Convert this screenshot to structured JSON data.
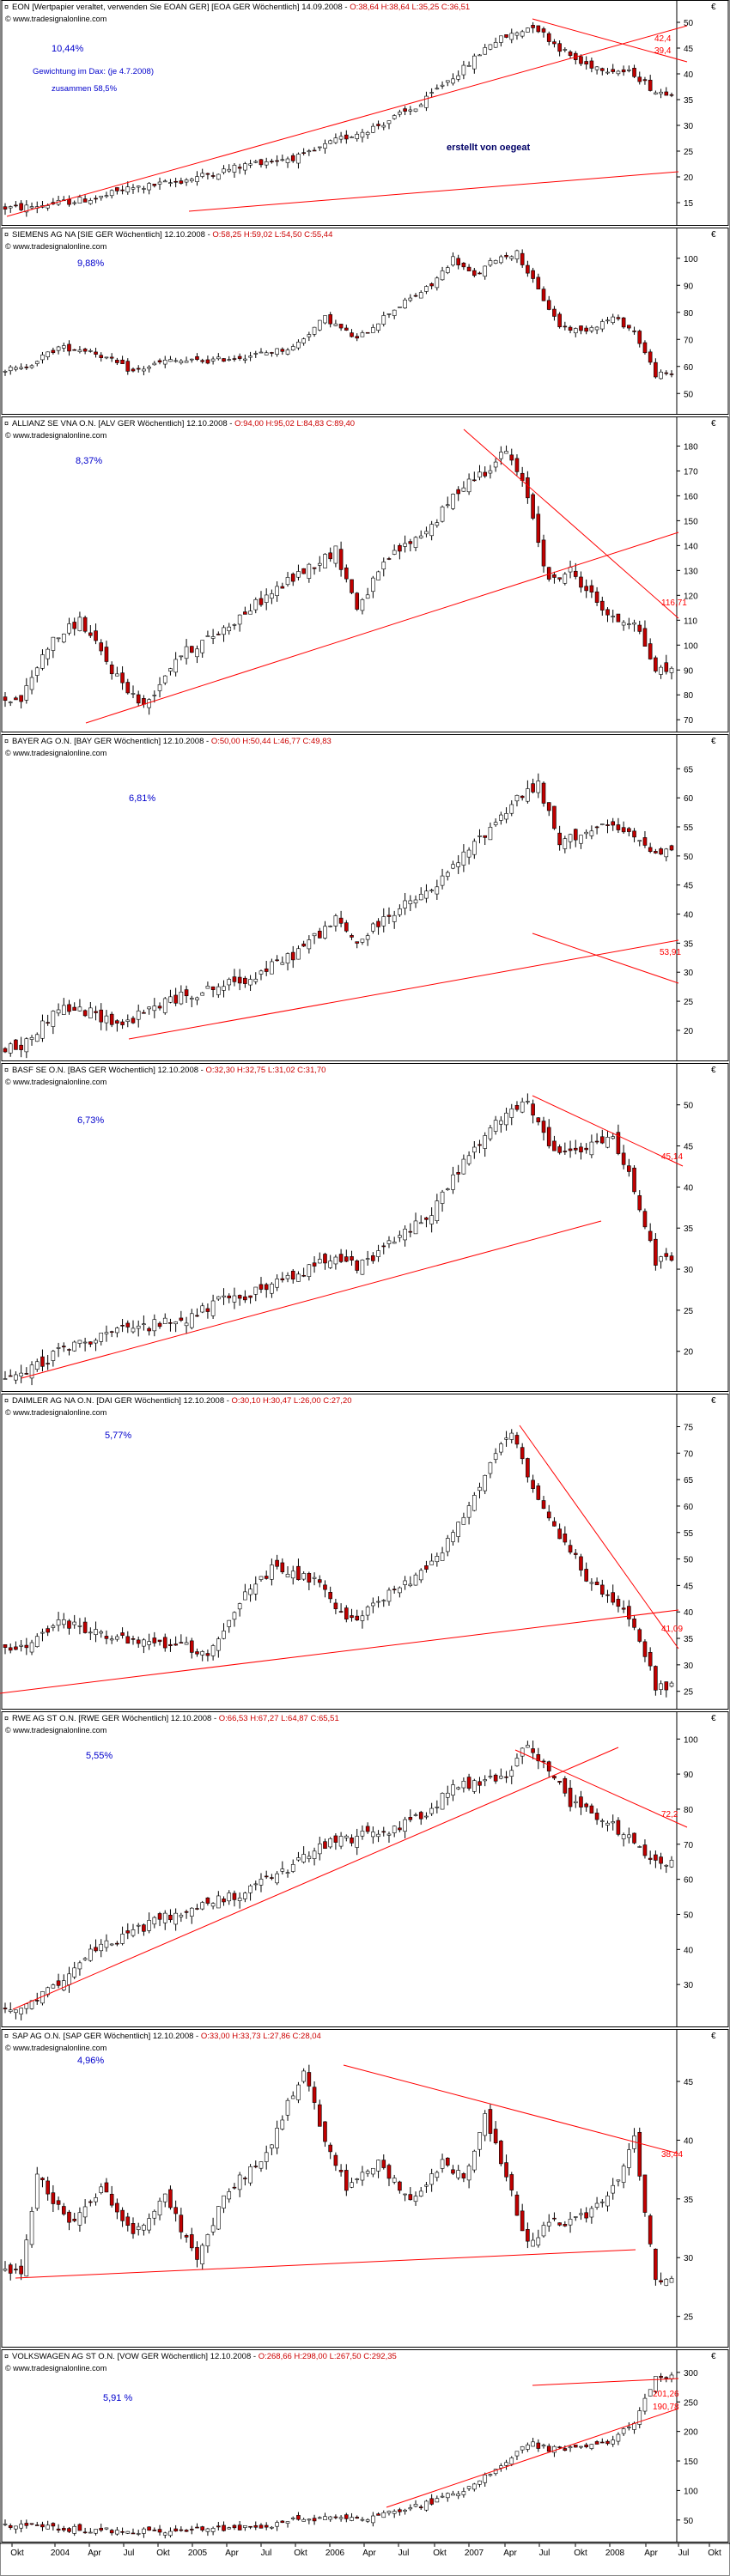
{
  "source_url": "www.tradesignalonline.com",
  "currency_symbol": "€",
  "author_note": "erstellt von oegeat",
  "x_axis": {
    "labels": [
      "Okt",
      "2004",
      "Apr",
      "Jul",
      "Okt",
      "2005",
      "Apr",
      "Jul",
      "Okt",
      "2006",
      "Apr",
      "Jul",
      "Okt",
      "2007",
      "Apr",
      "Jul",
      "Okt",
      "2008",
      "Apr",
      "Jul",
      "Okt"
    ]
  },
  "colors": {
    "candle_up": "#ffffff",
    "candle_down": "#c00000",
    "wick": "#000000",
    "trendline": "#ff0000",
    "annotation": "#ff0000",
    "weight_text": "#0000cc",
    "header_text": "#000000",
    "ohlc_text": "#cc0000"
  },
  "chart_data": [
    {
      "type": "candlestick",
      "title": "EON [Wertpapier veraltet, verwenden Sie EOAN GER] [EOA GER Wöchentlich] 14.09.2008",
      "ohlc": "O:38,64 H:38,64 L:35,25 C:36,51",
      "weight_label": "10,44%",
      "extra_labels": [
        "Gewichtung im Dax: (je 4.7.2008)",
        "zusammen 58,5%"
      ],
      "y_ticks": [
        50,
        45,
        40,
        35,
        30,
        25,
        20,
        15
      ],
      "ylim": [
        12,
        51
      ],
      "annotations": [
        "42,4",
        "39,4"
      ],
      "series": [
        3,
        14,
        18,
        16,
        22,
        17.5,
        32,
        19,
        40,
        21,
        48,
        23,
        56,
        24,
        62,
        27,
        70,
        30,
        78,
        34,
        82,
        38,
        86,
        41,
        91,
        46,
        96,
        48,
        99,
        49.5,
        104,
        45,
        108,
        42,
        113,
        41,
        118,
        40,
        122,
        36.5
      ]
    },
    {
      "type": "candlestick",
      "title": "SIEMENS AG NA [SIE GER Wöchentlich] 12.10.2008",
      "ohlc": "O:58,25 H:59,02 L:54,50 C:55,44",
      "weight_label": "9,88%",
      "y_ticks": [
        100,
        90,
        80,
        70,
        60,
        50
      ],
      "ylim": [
        45,
        105
      ],
      "annotations": [],
      "series": [
        3,
        59,
        10,
        67,
        16,
        66,
        24,
        58,
        30,
        62,
        38,
        62,
        46,
        64,
        54,
        67,
        60,
        78,
        66,
        70,
        72,
        80,
        80,
        90,
        84,
        100,
        88,
        93,
        92,
        100,
        96,
        102,
        100,
        88,
        104,
        75,
        108,
        73,
        114,
        78,
        118,
        73,
        122,
        57
      ]
    },
    {
      "type": "candlestick",
      "title": "ALLIANZ SE VNA O.N. [ALV GER Wöchentlich] 12.10.2008",
      "ohlc": "O:94,00 H:95,02 L:84,83 C:89,40",
      "weight_label": "8,37%",
      "y_ticks": [
        180,
        170,
        160,
        150,
        140,
        130,
        120,
        110,
        100,
        90,
        80,
        70
      ],
      "ylim": [
        68,
        185
      ],
      "annotations": [
        "116,71"
      ],
      "series": [
        3,
        78,
        8,
        100,
        14,
        110,
        20,
        90,
        26,
        75,
        32,
        95,
        40,
        105,
        48,
        118,
        56,
        130,
        62,
        138,
        66,
        115,
        72,
        135,
        80,
        148,
        86,
        165,
        90,
        170,
        94,
        178,
        98,
        160,
        102,
        125,
        106,
        130,
        110,
        120,
        114,
        110,
        118,
        110,
        122,
        90
      ]
    },
    {
      "type": "candlestick",
      "title": "BAYER AG O.N. [BAY GER Wöchentlich] 12.10.2008",
      "ohlc": "O:50,00 H:50,44 L:46,77 C:49,83",
      "weight_label": "6,81%",
      "y_ticks": [
        65,
        60,
        55,
        50,
        45,
        40,
        35,
        30,
        25,
        20
      ],
      "ylim": [
        16,
        68
      ],
      "annotations": [
        "53,91"
      ],
      "series": [
        3,
        17,
        10,
        24,
        16,
        23,
        22,
        21,
        30,
        25,
        38,
        27,
        46,
        29,
        54,
        33,
        62,
        39,
        66,
        35,
        72,
        40,
        80,
        44,
        86,
        50,
        92,
        56,
        96,
        60,
        100,
        62,
        104,
        52,
        108,
        54,
        114,
        55,
        118,
        53,
        122,
        51
      ]
    },
    {
      "type": "candlestick",
      "title": "BASF SE O.N. [BAS GER Wöchentlich] 12.10.2008",
      "ohlc": "O:32,30 H:32,75 L:31,02 C:31,70",
      "weight_label": "6,73%",
      "y_ticks": [
        50,
        45,
        40,
        35,
        30,
        25,
        20
      ],
      "ylim": [
        16,
        53
      ],
      "annotations": [
        "45,14"
      ],
      "series": [
        3,
        17,
        10,
        20,
        18,
        22,
        26,
        23,
        34,
        24,
        40,
        26,
        46,
        27,
        54,
        29,
        62,
        32,
        66,
        30,
        72,
        33,
        80,
        37,
        86,
        43,
        90,
        46,
        94,
        49,
        98,
        50,
        102,
        45,
        106,
        44,
        110,
        45,
        114,
        46,
        118,
        40,
        122,
        31
      ]
    },
    {
      "type": "candlestick",
      "title": "DAIMLER AG NA O.N. [DAI GER Wöchentlich] 12.10.2008",
      "ohlc": "O:30,10 H:30,47 L:26,00 C:27,20",
      "weight_label": "5,77%",
      "y_ticks": [
        75,
        70,
        65,
        60,
        55,
        50,
        45,
        40,
        35,
        30,
        25
      ],
      "ylim": [
        23,
        78
      ],
      "annotations": [
        "41,09"
      ],
      "series": [
        3,
        33,
        10,
        38,
        18,
        36,
        24,
        34,
        32,
        34,
        38,
        32,
        44,
        42,
        50,
        48,
        58,
        46,
        64,
        38,
        70,
        42,
        76,
        46,
        82,
        52,
        86,
        58,
        90,
        66,
        95,
        74,
        98,
        65,
        102,
        57,
        106,
        52,
        110,
        45,
        114,
        42,
        118,
        38,
        122,
        26
      ]
    },
    {
      "type": "candlestick",
      "title": "RWE AG ST O.N. [RWE GER Wöchentlich] 12.10.2008",
      "ohlc": "O:66,53 H:67,27 L:64,87 C:65,51",
      "weight_label": "5,55%",
      "y_ticks": [
        100,
        90,
        80,
        70,
        60,
        50,
        40,
        30
      ],
      "ylim": [
        20,
        103
      ],
      "annotations": [
        "72,2"
      ],
      "series": [
        3,
        22,
        8,
        28,
        14,
        37,
        20,
        42,
        28,
        48,
        36,
        52,
        44,
        56,
        52,
        62,
        60,
        70,
        66,
        72,
        72,
        74,
        78,
        78,
        84,
        86,
        90,
        88,
        94,
        90,
        98,
        98,
        102,
        92,
        106,
        82,
        110,
        79,
        114,
        75,
        118,
        70,
        122,
        65
      ]
    },
    {
      "type": "candlestick",
      "title": "SAP AG O.N. [SAP GER Wöchentlich] 12.10.2008",
      "ohlc": "O:33,00 H:33,73 L:27,86 C:28,04",
      "weight_label": "4,96%",
      "y_ticks": [
        45,
        40,
        35,
        30,
        25
      ],
      "ylim": [
        23,
        48
      ],
      "annotations": [
        "38,44"
      ],
      "series": [
        3,
        29,
        6,
        37,
        12,
        33,
        18,
        36,
        24,
        32,
        30,
        35,
        36,
        30,
        42,
        36,
        48,
        38,
        54,
        44,
        56,
        46,
        60,
        40,
        64,
        36,
        70,
        38,
        76,
        35,
        82,
        38,
        86,
        37,
        90,
        42,
        94,
        37,
        98,
        31,
        102,
        33,
        106,
        33,
        110,
        34,
        114,
        36,
        118,
        40,
        122,
        28
      ]
    },
    {
      "type": "candlestick",
      "title": "VOLKSWAGEN AG ST O.N. [VOW GER Wöchentlich] 12.10.2008",
      "ohlc": "O:268,66 H:298,00 L:267,50 C:292,35",
      "weight_label": "5,91 %",
      "y_ticks": [
        300,
        250,
        200,
        150,
        100,
        50
      ],
      "ylim": [
        25,
        310
      ],
      "annotations": [
        "201,26",
        "190,78"
      ],
      "series": [
        3,
        40,
        10,
        36,
        18,
        32,
        26,
        30,
        34,
        32,
        42,
        36,
        50,
        42,
        56,
        52,
        62,
        56,
        66,
        52,
        72,
        62,
        80,
        80,
        88,
        110,
        94,
        150,
        98,
        180,
        102,
        170,
        106,
        172,
        110,
        175,
        114,
        185,
        118,
        215,
        122,
        292
      ]
    }
  ]
}
